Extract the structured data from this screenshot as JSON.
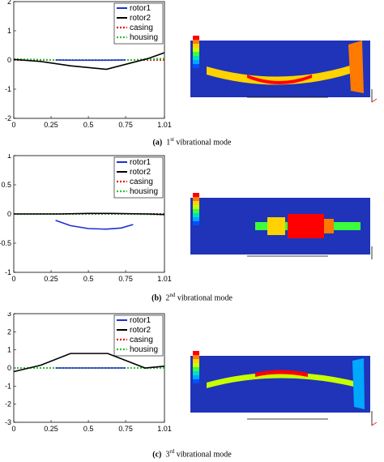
{
  "panels": [
    {
      "caption_letter": "(a)",
      "caption_num": "1",
      "caption_sup": "st",
      "caption_rest": "vibrational mode",
      "chart_data": {
        "type": "line",
        "xlim": [
          0,
          1.01
        ],
        "ylim": [
          -2,
          2
        ],
        "xticks": [
          "0",
          "0.25",
          "0.5",
          "0.75",
          "1.01"
        ],
        "yticks": [
          "2",
          "1",
          "0",
          "-1",
          "-2"
        ],
        "ytick_values": [
          2,
          1,
          0,
          -1,
          -2
        ],
        "xtick_values": [
          0,
          0.25,
          0.5,
          0.75,
          1.01
        ],
        "legend_position": "top-right",
        "series": [
          {
            "name": "rotor1",
            "color": "#1f2ecf",
            "style": "solid",
            "x": [
              0.28,
              0.4,
              0.5,
              0.62,
              0.75
            ],
            "y": [
              0.0,
              -0.01,
              -0.01,
              -0.01,
              0.0
            ]
          },
          {
            "name": "rotor2",
            "color": "#000000",
            "style": "solid",
            "x": [
              0,
              0.18,
              0.38,
              0.62,
              0.9,
              1.01
            ],
            "y": [
              0.02,
              -0.05,
              -0.2,
              -0.32,
              0.05,
              0.25
            ]
          },
          {
            "name": "casing",
            "color": "#e0191c",
            "style": "dotted",
            "x": [
              0,
              0.25,
              0.5,
              0.75,
              1.01
            ],
            "y": [
              0,
              0,
              0,
              0,
              0
            ]
          },
          {
            "name": "housing",
            "color": "#2fbf32",
            "style": "dotted",
            "x": [
              0,
              0.28,
              0.78,
              1.01
            ],
            "y": [
              0.03,
              0.0,
              0.0,
              0.05
            ]
          }
        ]
      }
    },
    {
      "caption_letter": "(b)",
      "caption_num": "2",
      "caption_sup": "nd",
      "caption_rest": "vibrational mode",
      "chart_data": {
        "type": "line",
        "xlim": [
          0,
          1.01
        ],
        "ylim": [
          -1,
          1
        ],
        "xticks": [
          "0",
          "0.25",
          "0.5",
          "0.75",
          "1.01"
        ],
        "yticks": [
          "1",
          "0.5",
          "0",
          "-0.5",
          "-1"
        ],
        "ytick_values": [
          1,
          0.5,
          0,
          -0.5,
          -1
        ],
        "xtick_values": [
          0,
          0.25,
          0.5,
          0.75,
          1.01
        ],
        "legend_position": "top-right",
        "series": [
          {
            "name": "rotor1",
            "color": "#1f2ecf",
            "style": "solid",
            "x": [
              0.28,
              0.38,
              0.5,
              0.62,
              0.72,
              0.8
            ],
            "y": [
              -0.11,
              -0.2,
              -0.25,
              -0.26,
              -0.24,
              -0.18
            ]
          },
          {
            "name": "rotor2",
            "color": "#000000",
            "style": "solid",
            "x": [
              0,
              0.3,
              0.5,
              0.65,
              0.9,
              1.01
            ],
            "y": [
              0.0,
              0.0,
              0.01,
              0.01,
              0.0,
              -0.01
            ]
          },
          {
            "name": "casing",
            "color": "#e0191c",
            "style": "dotted",
            "x": [
              0,
              0.25,
              0.5,
              0.75,
              1.01
            ],
            "y": [
              0,
              0,
              0,
              0,
              0
            ]
          },
          {
            "name": "housing",
            "color": "#2fbf32",
            "style": "dotted",
            "x": [
              0,
              0.28,
              0.78,
              1.01
            ],
            "y": [
              0.0,
              0.0,
              0.0,
              -0.01
            ]
          }
        ]
      }
    },
    {
      "caption_letter": "(c)",
      "caption_num": "3",
      "caption_sup": "rd",
      "caption_rest": "vibrational mode",
      "chart_data": {
        "type": "line",
        "xlim": [
          0,
          1.01
        ],
        "ylim": [
          -3,
          3
        ],
        "xticks": [
          "0",
          "0.25",
          "0.5",
          "0.75",
          "1.01"
        ],
        "yticks": [
          "3",
          "2",
          "1",
          "0",
          "-1",
          "-2",
          "-3"
        ],
        "ytick_values": [
          3,
          2,
          1,
          0,
          -1,
          -2,
          -3
        ],
        "xtick_values": [
          0,
          0.25,
          0.5,
          0.75,
          1.01
        ],
        "legend_position": "top-right",
        "series": [
          {
            "name": "rotor1",
            "color": "#1f2ecf",
            "style": "solid",
            "x": [
              0.28,
              0.4,
              0.5,
              0.62,
              0.75
            ],
            "y": [
              0.0,
              0.0,
              0.0,
              0.0,
              0.0
            ]
          },
          {
            "name": "rotor2",
            "color": "#000000",
            "style": "solid",
            "x": [
              0,
              0.18,
              0.38,
              0.63,
              0.88,
              1.01
            ],
            "y": [
              -0.2,
              0.15,
              0.8,
              0.8,
              0.0,
              0.1
            ]
          },
          {
            "name": "casing",
            "color": "#e0191c",
            "style": "dotted",
            "x": [
              0,
              0.25,
              0.5,
              0.75,
              1.01
            ],
            "y": [
              0,
              0,
              0,
              0,
              0
            ]
          },
          {
            "name": "housing",
            "color": "#2fbf32",
            "style": "dotted",
            "x": [
              0,
              0.28,
              0.78,
              1.01
            ],
            "y": [
              0.0,
              0.0,
              0.0,
              0.0
            ]
          }
        ]
      }
    }
  ],
  "colors": {
    "fem_background": "#1f34b8",
    "contour": [
      "#ff0000",
      "#ff7a00",
      "#ffd200",
      "#c8ff00",
      "#3cff3c",
      "#00e0c0",
      "#00a8ff",
      "#0050ff"
    ]
  }
}
